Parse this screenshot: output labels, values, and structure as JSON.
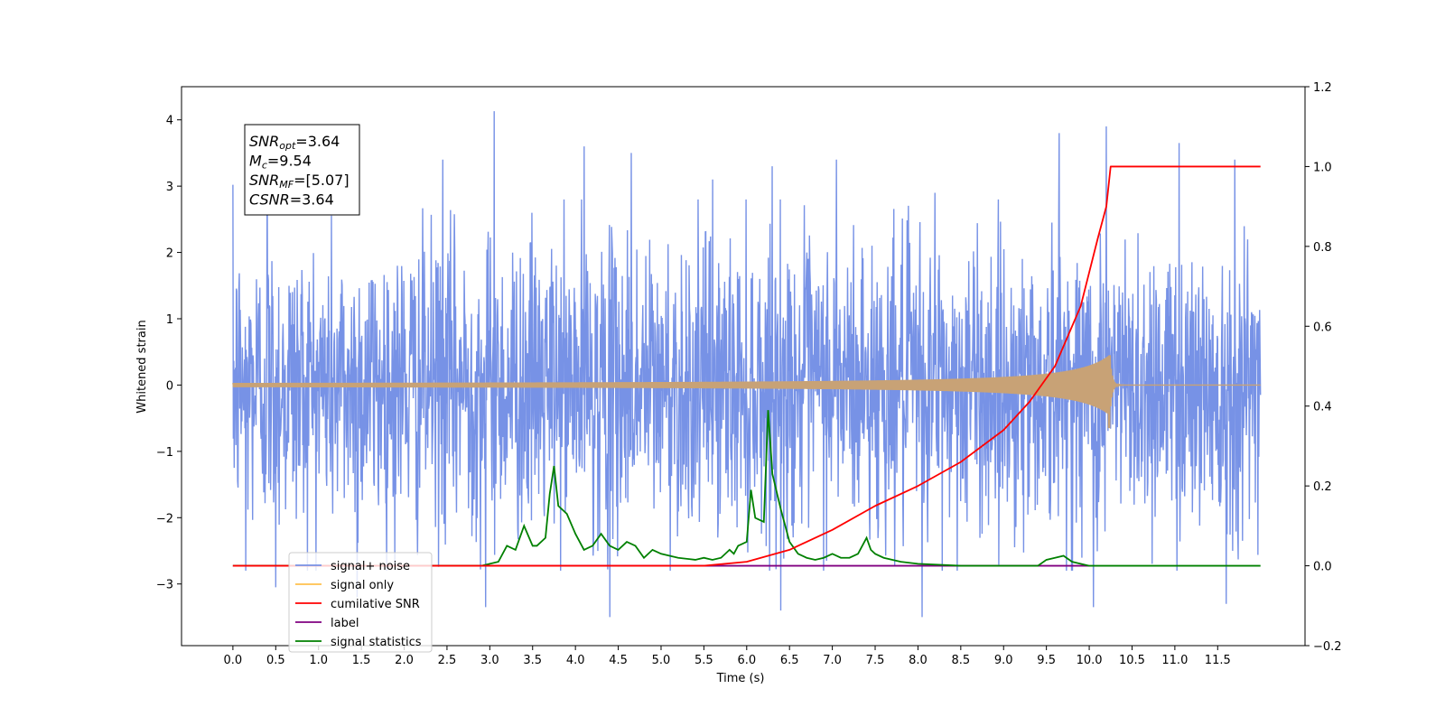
{
  "chart_data": {
    "type": "line",
    "xlabel": "Time (s)",
    "ylabel": "Whitened strain",
    "xlim": [
      -0.6,
      12.52
    ],
    "ylim": [
      -3.93,
      4.5
    ],
    "y2lim": [
      -0.2,
      1.2
    ],
    "grid": false,
    "legend_placement": "lower-left",
    "x_ticks": [
      "0.0",
      "0.5",
      "1.0",
      "1.5",
      "2.0",
      "2.5",
      "3.0",
      "3.5",
      "4.0",
      "4.5",
      "5.0",
      "5.5",
      "6.0",
      "6.5",
      "7.0",
      "7.5",
      "8.0",
      "8.5",
      "9.0",
      "9.5",
      "10.0",
      "10.5",
      "11.0",
      "11.5"
    ],
    "y_ticks": [
      "4",
      "3",
      "2",
      "1",
      "0",
      "−1",
      "−2",
      "−3"
    ],
    "y2_ticks": [
      "1.2",
      "1.0",
      "0.8",
      "0.6",
      "0.4",
      "0.2",
      "0.0",
      "−0.2"
    ],
    "annotation": {
      "lines": [
        {
          "base": "SNR",
          "sub": "opt",
          "value": "=3.64"
        },
        {
          "base": "M",
          "sub": "c",
          "value": "=9.54"
        },
        {
          "base": "SNR",
          "sub": "MF",
          "value": "=[5.07]"
        },
        {
          "base": "CSNR",
          "sub": "",
          "value": "=3.64"
        }
      ]
    },
    "series": [
      {
        "name": "signal+ noise",
        "axis": "left",
        "color": "#7792e6",
        "noise_envelope": {
          "x_start": 0.0,
          "x_end": 12.0,
          "typical_amplitude": 1.3,
          "max": 4.13,
          "min": -3.52
        },
        "spikes": [
          [
            0.0,
            3.02
          ],
          [
            0.15,
            -2.8
          ],
          [
            0.4,
            3.3
          ],
          [
            0.5,
            -3.05
          ],
          [
            1.45,
            -3.2
          ],
          [
            3.05,
            4.13
          ],
          [
            2.95,
            -3.35
          ],
          [
            2.45,
            3.4
          ],
          [
            4.1,
            3.6
          ],
          [
            4.4,
            -3.5
          ],
          [
            4.65,
            3.5
          ],
          [
            5.6,
            3.1
          ],
          [
            6.3,
            3.3
          ],
          [
            6.4,
            -3.4
          ],
          [
            7.05,
            3.4
          ],
          [
            8.05,
            -3.5
          ],
          [
            8.2,
            2.9
          ],
          [
            9.65,
            3.8
          ],
          [
            10.2,
            3.9
          ],
          [
            10.05,
            -3.35
          ],
          [
            11.05,
            3.65
          ],
          [
            11.6,
            -3.3
          ],
          [
            11.7,
            3.4
          ]
        ]
      },
      {
        "name": "signal only",
        "axis": "left",
        "color": "#ffc04d",
        "chirp": {
          "x_start": 0.0,
          "x_end": 12.0,
          "merger_x": 10.25,
          "peak_amplitude": 0.45,
          "min_amplitude": -0.65
        }
      },
      {
        "name": "cumilative SNR",
        "axis": "right",
        "color": "#ff0000",
        "x": [
          0.0,
          5.5,
          6.0,
          6.5,
          7.0,
          7.5,
          8.0,
          8.5,
          9.0,
          9.3,
          9.6,
          9.9,
          10.1,
          10.2,
          10.25,
          10.3,
          12.0
        ],
        "values": [
          0.0,
          0.0,
          0.01,
          0.04,
          0.09,
          0.15,
          0.2,
          0.26,
          0.34,
          0.41,
          0.5,
          0.65,
          0.82,
          0.9,
          1.0,
          1.0,
          1.0
        ]
      },
      {
        "name": "label",
        "axis": "right",
        "color": "#800080",
        "x": [
          0.0,
          10.0
        ],
        "values": [
          0.0,
          0.0
        ]
      },
      {
        "name": "signal statistics",
        "axis": "right",
        "color": "#008000",
        "x": [
          0.0,
          2.9,
          3.1,
          3.2,
          3.3,
          3.4,
          3.5,
          3.55,
          3.65,
          3.7,
          3.75,
          3.8,
          3.9,
          4.0,
          4.1,
          4.2,
          4.3,
          4.4,
          4.5,
          4.6,
          4.7,
          4.8,
          4.9,
          5.0,
          5.2,
          5.4,
          5.5,
          5.6,
          5.7,
          5.8,
          5.85,
          5.9,
          6.0,
          6.05,
          6.1,
          6.2,
          6.25,
          6.3,
          6.4,
          6.5,
          6.6,
          6.7,
          6.8,
          6.9,
          7.0,
          7.1,
          7.2,
          7.3,
          7.4,
          7.45,
          7.5,
          7.6,
          7.8,
          8.0,
          8.5,
          9.0,
          9.4,
          9.5,
          9.6,
          9.7,
          9.8,
          10.0,
          12.0
        ],
        "values": [
          0.0,
          0.0,
          0.01,
          0.05,
          0.04,
          0.1,
          0.05,
          0.05,
          0.07,
          0.18,
          0.25,
          0.15,
          0.13,
          0.08,
          0.04,
          0.05,
          0.08,
          0.05,
          0.04,
          0.06,
          0.05,
          0.02,
          0.04,
          0.03,
          0.02,
          0.015,
          0.02,
          0.015,
          0.02,
          0.04,
          0.03,
          0.05,
          0.06,
          0.19,
          0.12,
          0.11,
          0.39,
          0.23,
          0.14,
          0.06,
          0.03,
          0.02,
          0.015,
          0.02,
          0.03,
          0.02,
          0.02,
          0.03,
          0.07,
          0.04,
          0.03,
          0.02,
          0.01,
          0.005,
          0.0,
          0.0,
          0.0,
          0.015,
          0.02,
          0.025,
          0.01,
          0.0,
          0.0
        ]
      }
    ]
  }
}
